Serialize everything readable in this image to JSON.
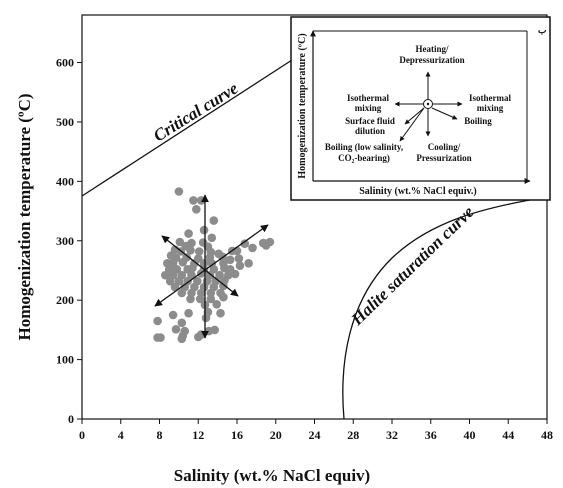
{
  "chart_data": {
    "type": "scatter",
    "xlabel": "Salinity (wt.% NaCl equiv)",
    "ylabel": "Homogenization temperature (ºC)",
    "xlim": [
      0,
      48
    ],
    "ylim": [
      0,
      680
    ],
    "xticks": [
      "0",
      "4",
      "8",
      "12",
      "16",
      "20",
      "24",
      "28",
      "32",
      "36",
      "40",
      "44",
      "48"
    ],
    "yticks": [
      "0",
      "100",
      "200",
      "300",
      "400",
      "500",
      "600"
    ],
    "point_color": "#8c8c8c",
    "points": [
      [
        10.0,
        383
      ],
      [
        11.5,
        368
      ],
      [
        12.3,
        368
      ],
      [
        11.8,
        353
      ],
      [
        13.6,
        334
      ],
      [
        12.6,
        318
      ],
      [
        11.0,
        312
      ],
      [
        13.4,
        305
      ],
      [
        10.1,
        298
      ],
      [
        11.3,
        296
      ],
      [
        12.5,
        297
      ],
      [
        10.7,
        291
      ],
      [
        13.0,
        290
      ],
      [
        9.6,
        285
      ],
      [
        10.2,
        282
      ],
      [
        11.2,
        284
      ],
      [
        12.1,
        282
      ],
      [
        13.3,
        281
      ],
      [
        14.1,
        278
      ],
      [
        9.2,
        275
      ],
      [
        9.7,
        271
      ],
      [
        10.8,
        272
      ],
      [
        12.0,
        270
      ],
      [
        13.2,
        272
      ],
      [
        14.5,
        273
      ],
      [
        15.5,
        283
      ],
      [
        16.0,
        283
      ],
      [
        8.8,
        262
      ],
      [
        9.4,
        262
      ],
      [
        10.4,
        264
      ],
      [
        11.6,
        262
      ],
      [
        12.6,
        262
      ],
      [
        13.4,
        262
      ],
      [
        14.6,
        262
      ],
      [
        15.3,
        268
      ],
      [
        16.2,
        270
      ],
      [
        9.0,
        252
      ],
      [
        9.8,
        252
      ],
      [
        10.9,
        252
      ],
      [
        11.4,
        254
      ],
      [
        12.6,
        252
      ],
      [
        13.6,
        252
      ],
      [
        14.7,
        254
      ],
      [
        15.3,
        252
      ],
      [
        8.6,
        242
      ],
      [
        9.4,
        242
      ],
      [
        10.3,
        242
      ],
      [
        11.3,
        242
      ],
      [
        12.3,
        245
      ],
      [
        13.2,
        242
      ],
      [
        14.2,
        242
      ],
      [
        15.1,
        242
      ],
      [
        15.8,
        244
      ],
      [
        9.1,
        232
      ],
      [
        10.0,
        232
      ],
      [
        10.9,
        232
      ],
      [
        11.9,
        232
      ],
      [
        12.9,
        232
      ],
      [
        13.8,
        232
      ],
      [
        14.7,
        233
      ],
      [
        9.6,
        222
      ],
      [
        10.6,
        222
      ],
      [
        11.6,
        222
      ],
      [
        12.6,
        222
      ],
      [
        13.6,
        222
      ],
      [
        14.6,
        224
      ],
      [
        10.3,
        212
      ],
      [
        11.3,
        212
      ],
      [
        12.3,
        212
      ],
      [
        13.3,
        212
      ],
      [
        14.3,
        212
      ],
      [
        11.2,
        202
      ],
      [
        12.2,
        202
      ],
      [
        13.3,
        202
      ],
      [
        14.6,
        205
      ],
      [
        12.7,
        192
      ],
      [
        13.9,
        193
      ],
      [
        13.0,
        180
      ],
      [
        14.3,
        178
      ],
      [
        12.8,
        170
      ],
      [
        16.3,
        258
      ],
      [
        17.6,
        288
      ],
      [
        18.7,
        296
      ],
      [
        19.0,
        292
      ],
      [
        19.4,
        298
      ],
      [
        19.0,
        295
      ],
      [
        16.8,
        295
      ],
      [
        17.2,
        262
      ],
      [
        9.4,
        175
      ],
      [
        11.0,
        178
      ],
      [
        10.3,
        162
      ],
      [
        7.8,
        165
      ],
      [
        9.7,
        151
      ],
      [
        10.6,
        148
      ],
      [
        10.4,
        140
      ],
      [
        12.3,
        142
      ],
      [
        13.1,
        148
      ],
      [
        13.7,
        150
      ],
      [
        7.8,
        137
      ],
      [
        8.1,
        137
      ],
      [
        10.3,
        135
      ],
      [
        12.0,
        138
      ]
    ]
  },
  "curves": {
    "critical": "Critical curve",
    "halite": "Halite saturation curve"
  },
  "inset": {
    "panel_letter": "ب",
    "xlabel": "Salinity (wt.% NaCl equiv.)",
    "ylabel": "Homogenization temperature (ºC)",
    "labels": {
      "heating_1": "Heating/",
      "heating_2": "Depressurization",
      "iso_mixing_left_1": "Isothermal",
      "iso_mixing_left_2": "mixing",
      "iso_mixing_right_1": "Isothermal",
      "iso_mixing_right_2": "mixing",
      "surface_1": "Surface fluid",
      "surface_2": "dilution",
      "boiling_right": "Boiling",
      "boiling_low_1": "Boiling (low salinity,",
      "boiling_low_2": "CO₂-bearing)",
      "cooling_1": "Cooling/",
      "cooling_2": "Pressurization"
    }
  }
}
